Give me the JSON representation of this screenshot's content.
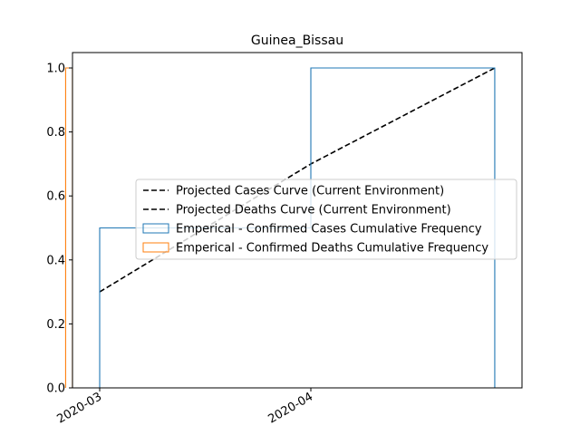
{
  "chart_data": {
    "type": "line",
    "title": "Guinea_Bissau",
    "xlabel": "",
    "ylabel": "",
    "x_axis": {
      "ticks": [
        "2020-03",
        "2020-04"
      ]
    },
    "y_axis": {
      "ylim": [
        0.0,
        1.05
      ],
      "ticks": [
        "0.0",
        "0.2",
        "0.4",
        "0.6",
        "0.8",
        "1.0"
      ]
    },
    "grid": false,
    "legend_position": "center-right",
    "series": [
      {
        "name": "Projected Cases Curve (Current Environment)",
        "style": "dashed",
        "color": "#000000",
        "points": [
          {
            "x": "2020-03-01",
            "y": 0.3
          },
          {
            "x": "2020-04-01",
            "y": 0.7
          },
          {
            "x": "2020-04-28",
            "y": 1.0
          }
        ]
      },
      {
        "name": "Projected Deaths Curve (Current Environment)",
        "style": "dashed",
        "color": "#000000",
        "points": []
      },
      {
        "name": "Emperical - Confirmed Cases Cumulative Frequency",
        "style": "step",
        "color": "#1f77b4",
        "points": [
          {
            "x": "2020-03-01",
            "y": 0.0
          },
          {
            "x": "2020-03-01",
            "y": 0.5
          },
          {
            "x": "2020-04-01",
            "y": 0.5
          },
          {
            "x": "2020-04-01",
            "y": 1.0
          },
          {
            "x": "2020-04-28",
            "y": 1.0
          },
          {
            "x": "2020-04-28",
            "y": 0.0
          }
        ]
      },
      {
        "name": "Emperical - Confirmed Deaths Cumulative Frequency",
        "style": "step",
        "color": "#ff7f0e",
        "points": [
          {
            "x": "2020-02-25",
            "y": 0.0
          },
          {
            "x": "2020-02-25",
            "y": 1.0
          },
          {
            "x": "2020-02-26",
            "y": 1.0
          },
          {
            "x": "2020-02-26",
            "y": 0.0
          }
        ]
      }
    ]
  }
}
